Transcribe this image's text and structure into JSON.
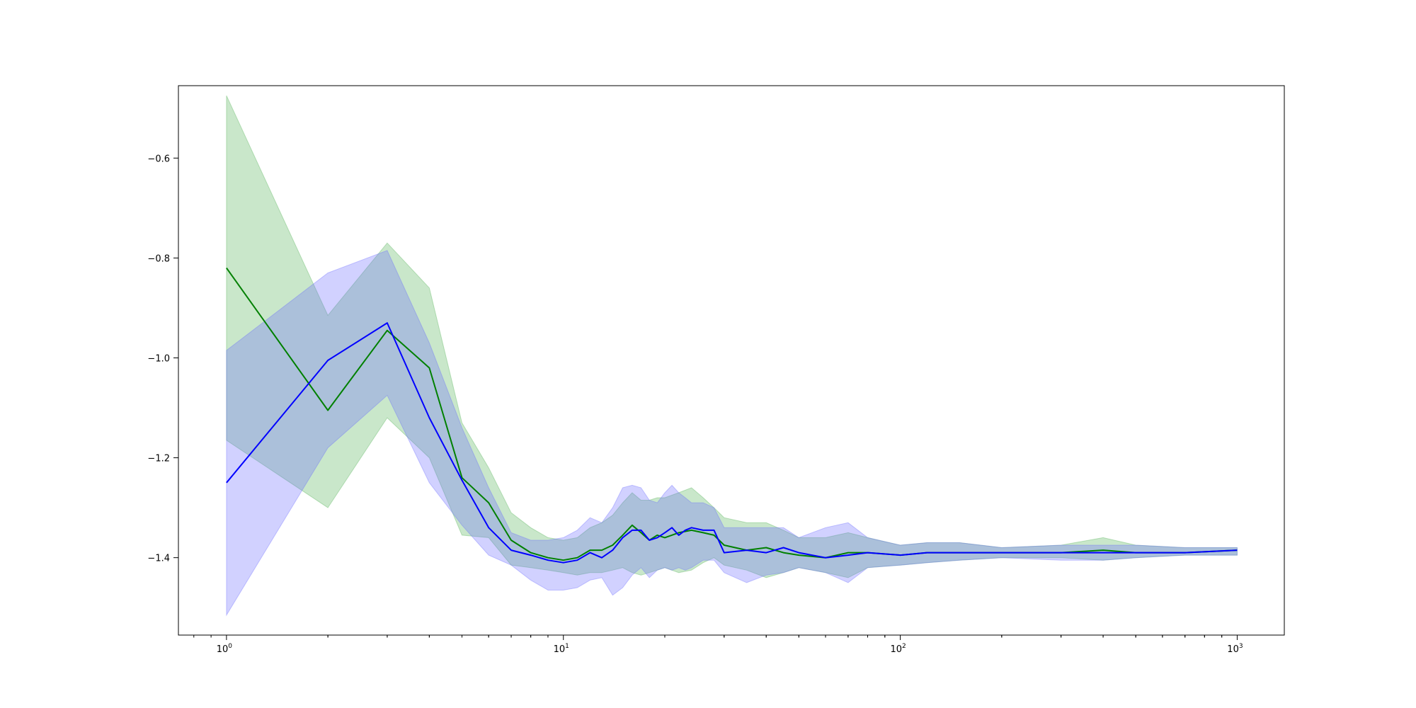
{
  "chart_data": {
    "type": "line",
    "title": "",
    "xlabel": "",
    "ylabel": "",
    "xscale": "log",
    "xlim": [
      0.72,
      1380
    ],
    "ylim": [
      -1.555,
      -0.455
    ],
    "grid": false,
    "legend": "none",
    "xticks": [
      {
        "value": 1,
        "base": "10",
        "exp": "0"
      },
      {
        "value": 10,
        "base": "10",
        "exp": "1"
      },
      {
        "value": 100,
        "base": "10",
        "exp": "2"
      },
      {
        "value": 1000,
        "base": "10",
        "exp": "3"
      }
    ],
    "yticks": [
      {
        "value": -0.6,
        "label": "−0.6"
      },
      {
        "value": -0.8,
        "label": "−0.8"
      },
      {
        "value": -1.0,
        "label": "−1.0"
      },
      {
        "value": -1.2,
        "label": "−1.2"
      },
      {
        "value": -1.4,
        "label": "−1.4"
      }
    ],
    "series": [
      {
        "color": "#008000",
        "band_color": "#4caf50",
        "x": [
          1,
          2,
          3,
          4,
          5,
          6,
          7,
          8,
          9,
          10,
          11,
          12,
          13,
          14,
          15,
          16,
          17,
          18,
          19,
          20,
          22,
          24,
          26,
          28,
          30,
          35,
          40,
          45,
          50,
          60,
          70,
          80,
          100,
          120,
          150,
          200,
          300,
          400,
          500,
          700,
          1000
        ],
        "y": [
          -0.82,
          -1.105,
          -0.945,
          -1.02,
          -1.24,
          -1.29,
          -1.365,
          -1.39,
          -1.4,
          -1.405,
          -1.4,
          -1.385,
          -1.385,
          -1.375,
          -1.355,
          -1.335,
          -1.35,
          -1.365,
          -1.355,
          -1.36,
          -1.35,
          -1.345,
          -1.35,
          -1.355,
          -1.375,
          -1.385,
          -1.38,
          -1.39,
          -1.395,
          -1.4,
          -1.39,
          -1.39,
          -1.395,
          -1.39,
          -1.39,
          -1.39,
          -1.39,
          -1.385,
          -1.39,
          -1.39,
          -1.385
        ],
        "lower": [
          -1.165,
          -1.3,
          -1.12,
          -1.2,
          -1.355,
          -1.36,
          -1.415,
          -1.42,
          -1.425,
          -1.43,
          -1.435,
          -1.43,
          -1.43,
          -1.425,
          -1.42,
          -1.43,
          -1.435,
          -1.43,
          -1.425,
          -1.42,
          -1.43,
          -1.425,
          -1.41,
          -1.4,
          -1.415,
          -1.425,
          -1.44,
          -1.43,
          -1.42,
          -1.43,
          -1.44,
          -1.42,
          -1.415,
          -1.41,
          -1.405,
          -1.4,
          -1.4,
          -1.405,
          -1.4,
          -1.395,
          -1.395
        ],
        "upper": [
          -0.475,
          -0.915,
          -0.77,
          -0.86,
          -1.13,
          -1.22,
          -1.31,
          -1.34,
          -1.36,
          -1.365,
          -1.36,
          -1.34,
          -1.33,
          -1.315,
          -1.29,
          -1.27,
          -1.285,
          -1.285,
          -1.28,
          -1.28,
          -1.27,
          -1.26,
          -1.28,
          -1.3,
          -1.32,
          -1.33,
          -1.33,
          -1.345,
          -1.36,
          -1.36,
          -1.35,
          -1.36,
          -1.375,
          -1.37,
          -1.37,
          -1.38,
          -1.375,
          -1.36,
          -1.375,
          -1.38,
          -1.38
        ]
      },
      {
        "color": "#0000ff",
        "band_color": "#6666ff",
        "x": [
          1,
          2,
          3,
          4,
          5,
          6,
          7,
          8,
          9,
          10,
          11,
          12,
          13,
          14,
          15,
          16,
          17,
          18,
          19,
          20,
          21,
          22,
          23,
          24,
          26,
          28,
          30,
          35,
          40,
          45,
          50,
          60,
          70,
          80,
          100,
          120,
          150,
          200,
          300,
          400,
          500,
          700,
          1000
        ],
        "y": [
          -1.25,
          -1.005,
          -0.93,
          -1.12,
          -1.245,
          -1.34,
          -1.385,
          -1.395,
          -1.405,
          -1.41,
          -1.405,
          -1.39,
          -1.4,
          -1.385,
          -1.36,
          -1.345,
          -1.345,
          -1.365,
          -1.36,
          -1.35,
          -1.34,
          -1.355,
          -1.345,
          -1.34,
          -1.345,
          -1.345,
          -1.39,
          -1.385,
          -1.39,
          -1.38,
          -1.39,
          -1.4,
          -1.395,
          -1.39,
          -1.395,
          -1.39,
          -1.39,
          -1.39,
          -1.39,
          -1.39,
          -1.39,
          -1.39,
          -1.385
        ],
        "lower": [
          -1.515,
          -1.18,
          -1.075,
          -1.25,
          -1.335,
          -1.395,
          -1.415,
          -1.445,
          -1.465,
          -1.465,
          -1.46,
          -1.445,
          -1.44,
          -1.475,
          -1.46,
          -1.435,
          -1.42,
          -1.44,
          -1.425,
          -1.42,
          -1.425,
          -1.42,
          -1.425,
          -1.42,
          -1.405,
          -1.405,
          -1.43,
          -1.45,
          -1.435,
          -1.43,
          -1.42,
          -1.43,
          -1.45,
          -1.42,
          -1.415,
          -1.41,
          -1.405,
          -1.4,
          -1.405,
          -1.405,
          -1.4,
          -1.395,
          -1.395
        ],
        "upper": [
          -0.985,
          -0.83,
          -0.785,
          -0.97,
          -1.14,
          -1.26,
          -1.35,
          -1.365,
          -1.365,
          -1.36,
          -1.345,
          -1.32,
          -1.33,
          -1.3,
          -1.26,
          -1.255,
          -1.26,
          -1.285,
          -1.29,
          -1.27,
          -1.255,
          -1.27,
          -1.28,
          -1.29,
          -1.29,
          -1.3,
          -1.34,
          -1.34,
          -1.34,
          -1.34,
          -1.36,
          -1.34,
          -1.33,
          -1.36,
          -1.375,
          -1.37,
          -1.37,
          -1.38,
          -1.375,
          -1.375,
          -1.375,
          -1.38,
          -1.38
        ]
      }
    ]
  }
}
